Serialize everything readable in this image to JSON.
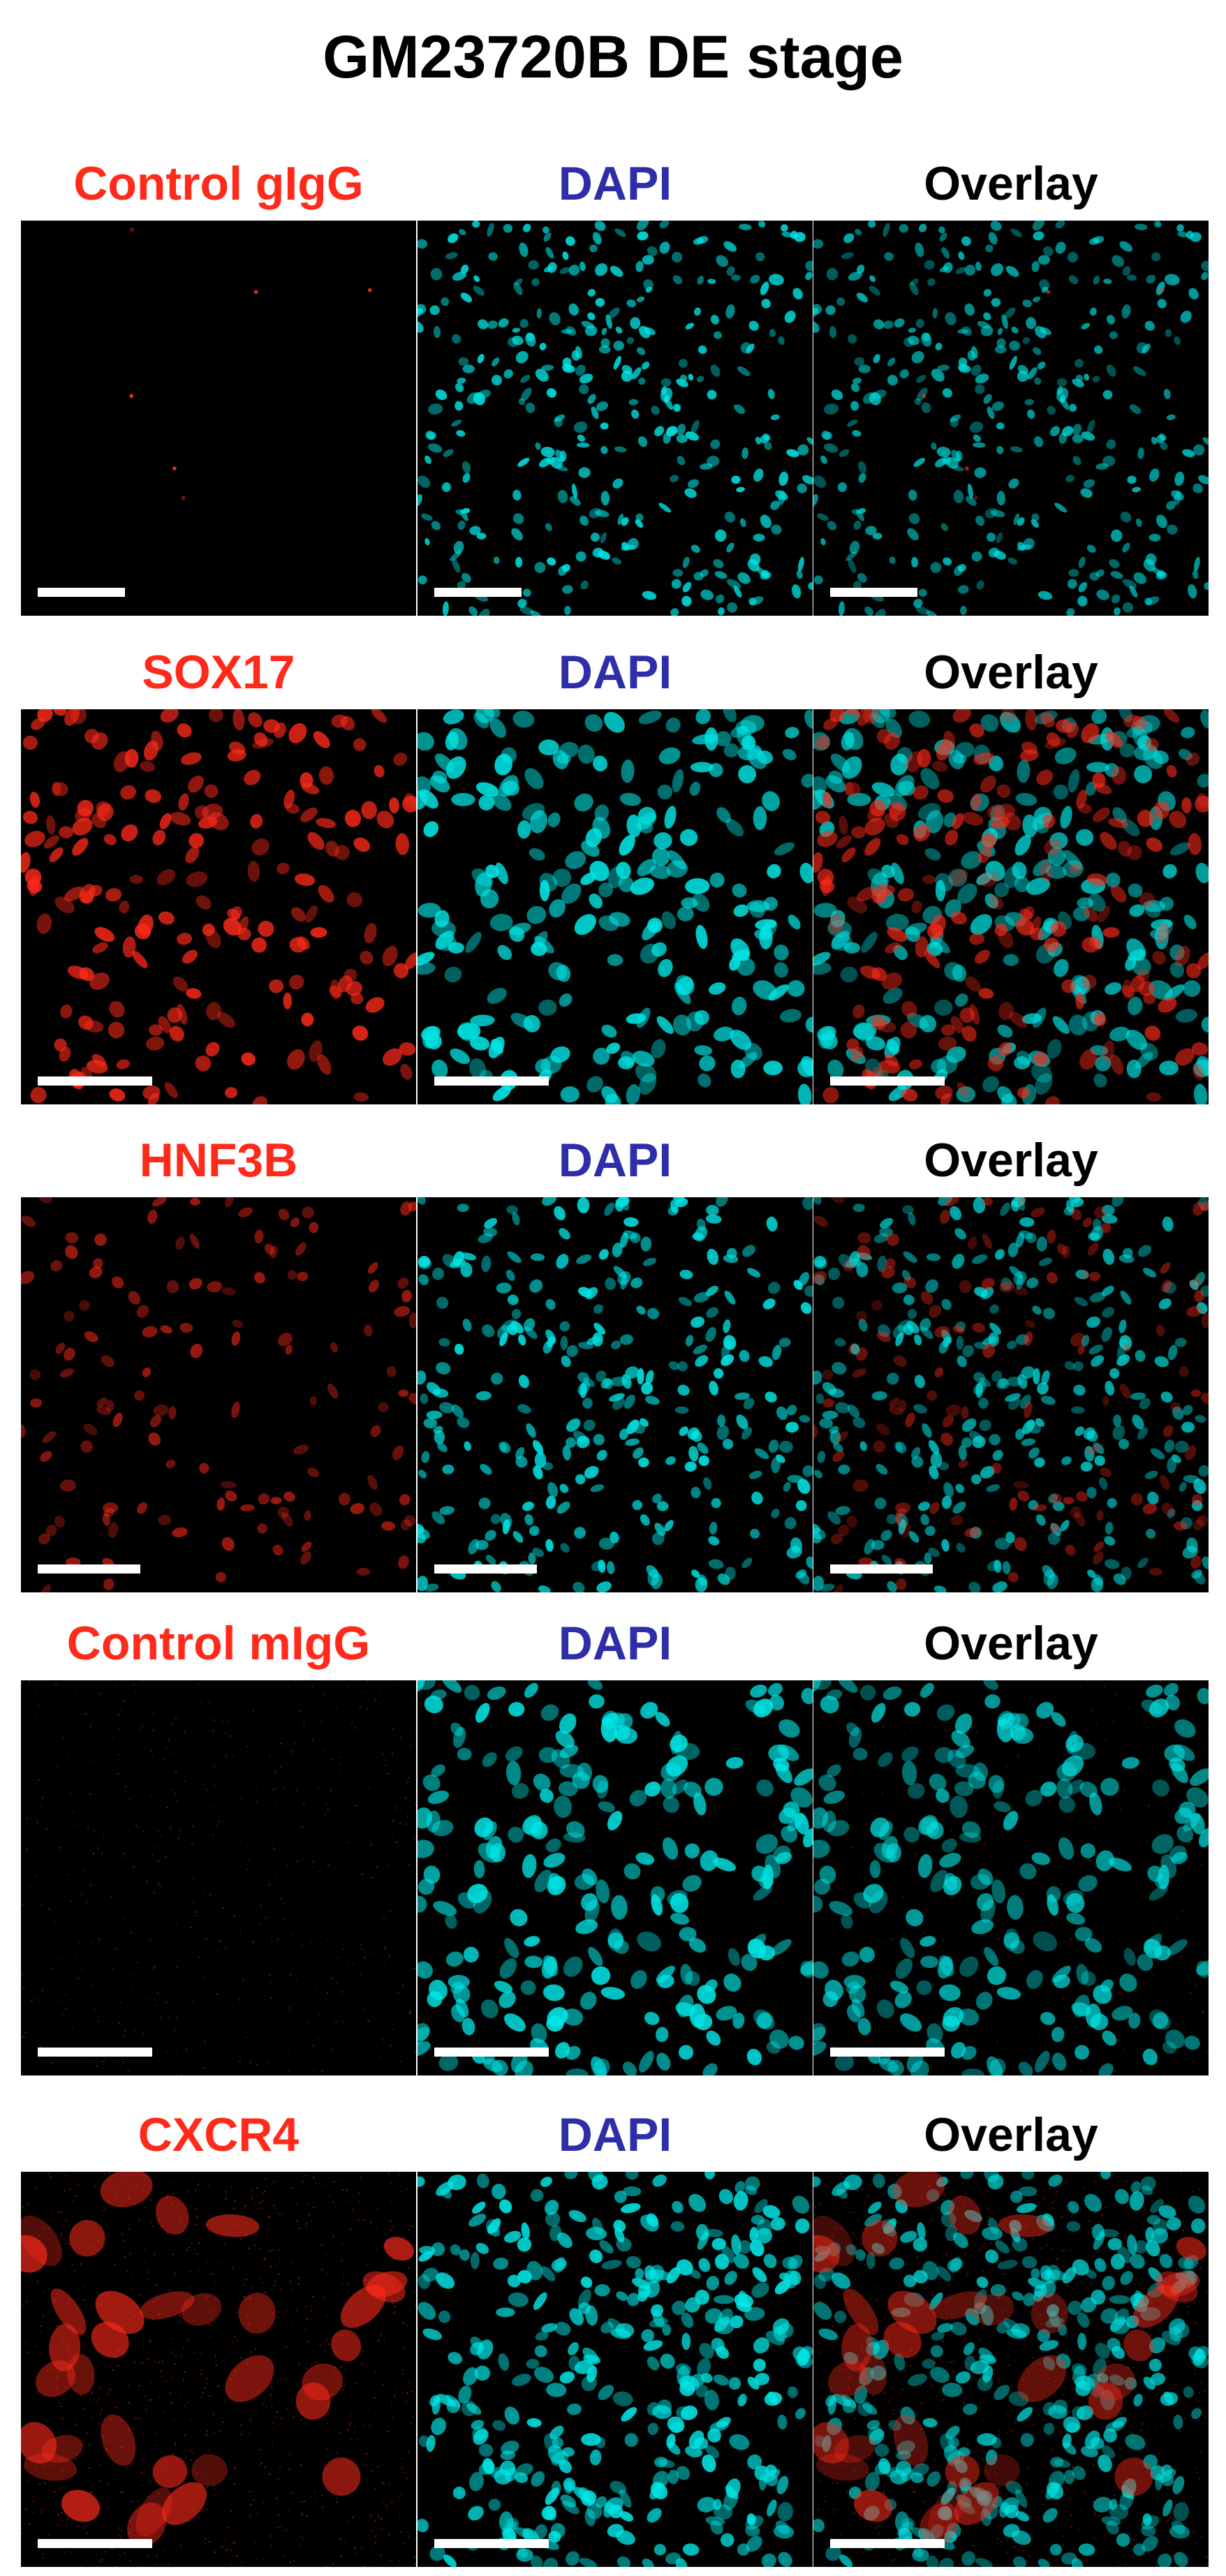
{
  "figure": {
    "title": "GM23720B DE stage"
  },
  "colors": {
    "marker_label": "#ff2a1a",
    "dapi_label": "#2e2ea8",
    "overlay_label": "#000000",
    "marker_signal": "#ff2a1a",
    "dapi_signal": "#00e5e5",
    "scale_bar": "#ffffff",
    "background": "#000000"
  },
  "rows": [
    {
      "marker": "Control gIgG",
      "dapi": "DAPI",
      "overlay": "Overlay",
      "marker_pattern": "sparse",
      "dapi_pattern": "dense-small",
      "scale_fraction": 0.22
    },
    {
      "marker": "SOX17",
      "dapi": "DAPI",
      "overlay": "Overlay",
      "marker_pattern": "nuclear",
      "dapi_pattern": "nuclei",
      "scale_fraction": 0.29
    },
    {
      "marker": "HNF3B",
      "dapi": "DAPI",
      "overlay": "Overlay",
      "marker_pattern": "nuclear-dim",
      "dapi_pattern": "nuclei-small",
      "scale_fraction": 0.26
    },
    {
      "marker": "Control mIgG",
      "dapi": "DAPI",
      "overlay": "Overlay",
      "marker_pattern": "noise",
      "dapi_pattern": "nuclei",
      "scale_fraction": 0.29
    },
    {
      "marker": "CXCR4",
      "dapi": "DAPI",
      "overlay": "Overlay",
      "marker_pattern": "cytoplasmic",
      "dapi_pattern": "nuclei-dense",
      "scale_fraction": 0.29
    }
  ]
}
